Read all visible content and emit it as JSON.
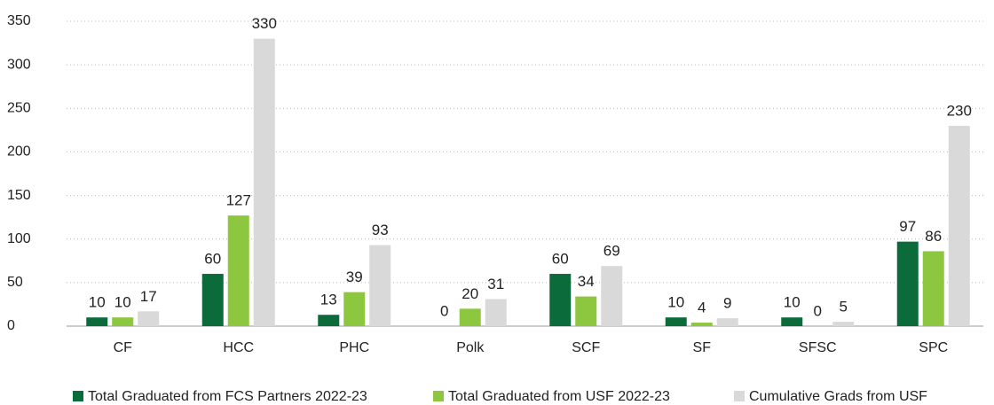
{
  "chart_data": {
    "type": "bar",
    "categories": [
      "CF",
      "HCC",
      "PHC",
      "Polk",
      "SCF",
      "SF",
      "SFSC",
      "SPC"
    ],
    "series": [
      {
        "name": "Total Graduated from FCS Partners 2022-23",
        "color": "#0b6b3a",
        "values": [
          10,
          60,
          13,
          0,
          60,
          10,
          10,
          97
        ]
      },
      {
        "name": "Total Graduated from USF 2022-23",
        "color": "#8dc63f",
        "values": [
          10,
          127,
          39,
          20,
          34,
          4,
          0,
          86
        ]
      },
      {
        "name": "Cumulative Grads from USF",
        "color": "#d9d9d9",
        "values": [
          17,
          330,
          93,
          31,
          69,
          9,
          5,
          230
        ]
      }
    ],
    "ylim": [
      0,
      350
    ],
    "yticks": [
      0,
      50,
      100,
      150,
      200,
      250,
      300,
      350
    ],
    "grid": true,
    "legend": "bottom"
  }
}
